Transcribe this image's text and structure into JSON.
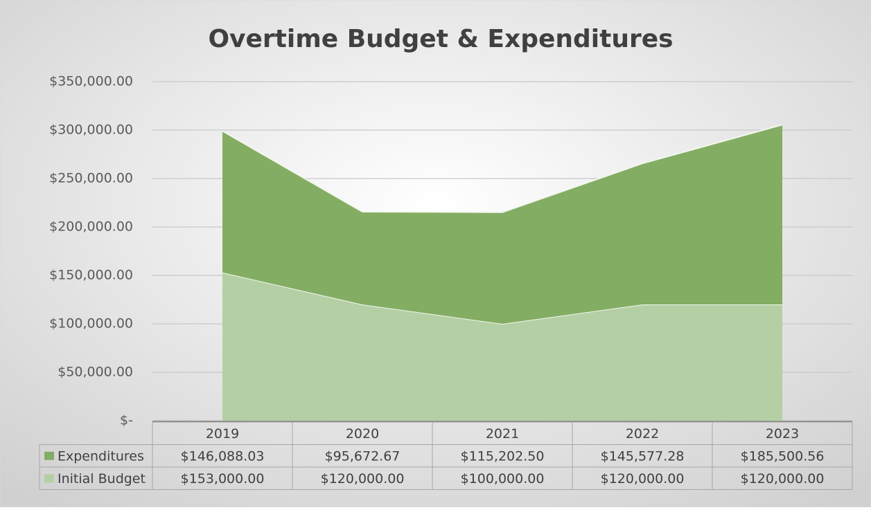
{
  "chart_data": {
    "type": "area",
    "stacked": true,
    "title": "Overtime Budget & Expenditures",
    "categories": [
      "2019",
      "2020",
      "2021",
      "2022",
      "2023"
    ],
    "series": [
      {
        "name": "Expenditures",
        "color": "#84ad64",
        "values": [
          146088.03,
          95672.67,
          115202.5,
          145577.28,
          185500.56
        ],
        "value_labels": [
          "$146,088.03",
          "$95,672.67",
          "$115,202.50",
          "$145,577.28",
          "$185,500.56"
        ]
      },
      {
        "name": "Initial Budget",
        "color": "#b5cfa4",
        "values": [
          153000,
          120000,
          100000,
          120000,
          120000
        ],
        "value_labels": [
          "$153,000.00",
          "$120,000.00",
          "$100,000.00",
          "$120,000.00",
          "$120,000.00"
        ]
      }
    ],
    "ylim": [
      0,
      350000
    ],
    "yticks": [
      {
        "value": 0,
        "label": "$-"
      },
      {
        "value": 50000,
        "label": "$50,000.00"
      },
      {
        "value": 100000,
        "label": "$100,000.00"
      },
      {
        "value": 150000,
        "label": "$150,000.00"
      },
      {
        "value": 200000,
        "label": "$200,000.00"
      },
      {
        "value": 250000,
        "label": "$250,000.00"
      },
      {
        "value": 300000,
        "label": "$300,000.00"
      },
      {
        "value": 350000,
        "label": "$350,000.00"
      }
    ],
    "grid": true
  }
}
